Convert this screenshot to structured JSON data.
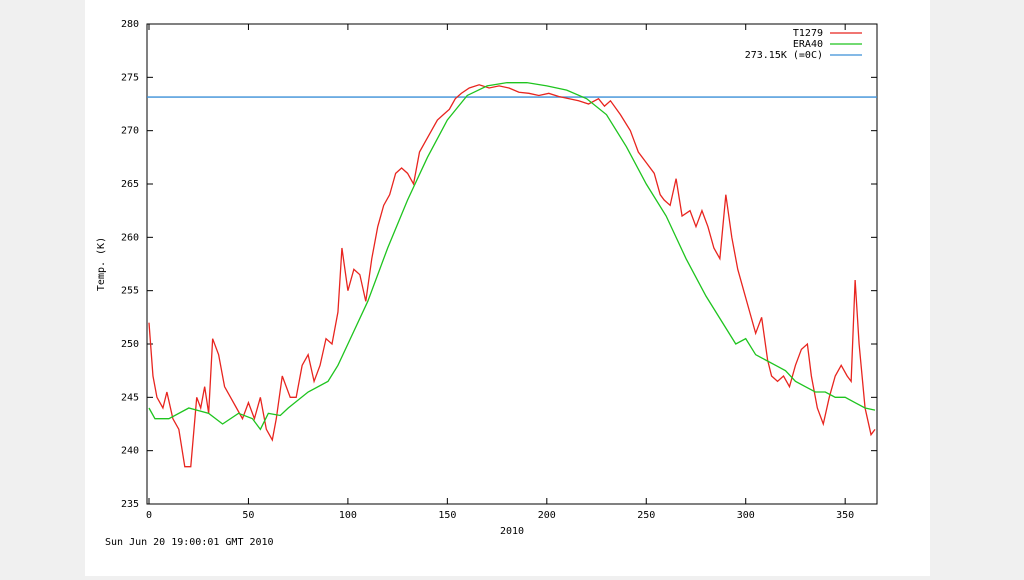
{
  "chart_data": {
    "type": "line",
    "x_label": "2010",
    "y_label": "Temp. (K)",
    "footer": "Sun Jun 20 19:00:01 GMT 2010",
    "xlim": [
      -1,
      366
    ],
    "ylim": [
      235,
      280
    ],
    "xticks": [
      0,
      50,
      100,
      150,
      200,
      250,
      300,
      350
    ],
    "yticks": [
      235,
      240,
      245,
      250,
      255,
      260,
      265,
      270,
      275,
      280
    ],
    "legend": "upper right",
    "series": [
      {
        "name": "T1279",
        "color": "#e8251f",
        "x": [
          0,
          2,
          4,
          7,
          9,
          12,
          15,
          18,
          21,
          24,
          26,
          28,
          30,
          32,
          35,
          38,
          41,
          44,
          47,
          50,
          53,
          56,
          59,
          62,
          64,
          67,
          71,
          74,
          77,
          80,
          83,
          86,
          89,
          92,
          95,
          97,
          100,
          103,
          106,
          109,
          112,
          115,
          118,
          121,
          124,
          127,
          130,
          133,
          136,
          139,
          142,
          145,
          148,
          151,
          154,
          157,
          161,
          166,
          171,
          176,
          181,
          186,
          191,
          196,
          201,
          206,
          211,
          216,
          221,
          226,
          229,
          232,
          237,
          242,
          246,
          250,
          254,
          257,
          259,
          262,
          265,
          268,
          272,
          275,
          278,
          281,
          284,
          287,
          290,
          293,
          296,
          299,
          302,
          305,
          308,
          311,
          313,
          316,
          319,
          322,
          325,
          328,
          331,
          333,
          336,
          339,
          342,
          345,
          348,
          351,
          353,
          355,
          357,
          360,
          363,
          365
        ],
        "values": [
          252,
          247,
          245,
          244,
          245.5,
          243,
          242,
          238.5,
          238.5,
          245,
          244,
          246,
          243.5,
          250.5,
          249,
          246,
          245,
          244,
          243,
          244.5,
          243,
          245,
          242,
          241,
          243,
          247,
          245,
          245,
          248,
          249,
          246.5,
          248,
          250.5,
          250,
          253,
          259,
          255,
          257,
          256.5,
          254,
          258,
          261,
          263,
          264,
          266,
          266.5,
          266,
          265,
          268,
          269,
          270,
          271,
          271.5,
          272,
          273,
          273.5,
          274,
          274.3,
          274,
          274.2,
          274,
          273.6,
          273.5,
          273.3,
          273.5,
          273.2,
          273,
          272.8,
          272.5,
          273,
          272.3,
          272.8,
          271.5,
          270,
          268,
          267,
          266,
          264,
          263.5,
          263,
          265.5,
          262,
          262.5,
          261,
          262.5,
          261,
          259,
          258,
          264,
          260,
          257,
          255,
          253,
          251,
          252.5,
          248.5,
          247,
          246.5,
          247,
          246,
          248,
          249.5,
          250,
          247,
          244,
          242.5,
          245,
          247,
          248,
          247,
          246.5,
          256,
          250,
          244,
          241.5,
          242
        ]
      },
      {
        "name": "ERA40",
        "color": "#1fc41f",
        "x": [
          0,
          3,
          10,
          20,
          30,
          37,
          45,
          52,
          56,
          60,
          66,
          70,
          80,
          90,
          95,
          100,
          110,
          120,
          130,
          140,
          150,
          160,
          170,
          180,
          190,
          200,
          210,
          220,
          230,
          240,
          250,
          260,
          270,
          280,
          290,
          295,
          300,
          305,
          310,
          315,
          320,
          325,
          330,
          335,
          340,
          345,
          350,
          355,
          360,
          365
        ],
        "values": [
          244,
          243,
          243,
          244,
          243.5,
          242.5,
          243.5,
          243,
          242,
          243.5,
          243.3,
          244,
          245.5,
          246.5,
          248,
          250,
          254,
          259,
          263.5,
          267.5,
          271,
          273.3,
          274.2,
          274.5,
          274.5,
          274.2,
          273.8,
          273,
          271.5,
          268.5,
          265,
          262,
          258,
          254.5,
          251.5,
          250,
          250.5,
          249,
          248.5,
          248,
          247.5,
          246.5,
          246,
          245.5,
          245.5,
          245,
          245,
          244.5,
          244,
          243.8
        ]
      }
    ],
    "reference_line": {
      "name": "273.15K (=0C)",
      "value": 273.15,
      "color": "#3a8fd8"
    }
  }
}
